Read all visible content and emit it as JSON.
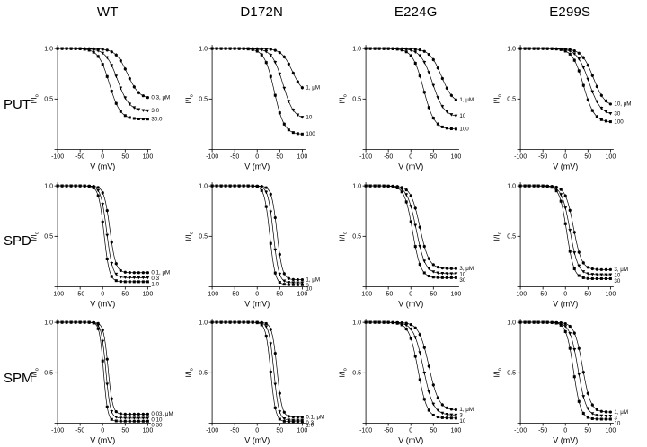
{
  "figure": {
    "columns": [
      "WT",
      "D172N",
      "E224G",
      "E299S"
    ],
    "rows": [
      "PUT",
      "SPD",
      "SPM"
    ],
    "axis": {
      "xlabel": "V (mV)",
      "ylabel_main": "I/I",
      "ylabel_sub": "o",
      "xticks": [
        -100,
        -50,
        0,
        50,
        100
      ],
      "yticks": [
        1.0,
        0.5
      ],
      "xlim": [
        -100,
        100
      ],
      "ylim": [
        0,
        1.05
      ]
    }
  },
  "chart_data": [
    {
      "row": "PUT",
      "col": "WT",
      "type": "line",
      "model": "boltzmann",
      "marker_step_mV": 10,
      "ylabel": "I/Io",
      "xlabel": "V (mV)",
      "series": [
        {
          "label": "0.3, μM",
          "conc_uM": 0.3,
          "marker": "circle",
          "vhalf": 55,
          "slope": 13,
          "floor": 0.5
        },
        {
          "label": "3.0",
          "conc_uM": 3,
          "marker": "triangle",
          "vhalf": 33,
          "slope": 13,
          "floor": 0.38
        },
        {
          "label": "30.0",
          "conc_uM": 30,
          "marker": "square",
          "vhalf": 15,
          "slope": 12,
          "floor": 0.3
        }
      ]
    },
    {
      "row": "PUT",
      "col": "D172N",
      "type": "line",
      "model": "boltzmann",
      "marker_step_mV": 10,
      "ylabel": "I/Io",
      "xlabel": "V (mV)",
      "series": [
        {
          "label": "1, μM",
          "conc_uM": 1,
          "marker": "circle",
          "vhalf": 78,
          "slope": 12,
          "floor": 0.55
        },
        {
          "label": "10",
          "conc_uM": 10,
          "marker": "triangle",
          "vhalf": 57,
          "slope": 12,
          "floor": 0.3
        },
        {
          "label": "100",
          "conc_uM": 100,
          "marker": "square",
          "vhalf": 38,
          "slope": 11,
          "floor": 0.15
        }
      ]
    },
    {
      "row": "PUT",
      "col": "E224G",
      "type": "line",
      "model": "boltzmann",
      "marker_step_mV": 10,
      "ylabel": "I/Io",
      "xlabel": "V (mV)",
      "series": [
        {
          "label": "1, μM",
          "conc_uM": 1,
          "marker": "circle",
          "vhalf": 68,
          "slope": 13,
          "floor": 0.45
        },
        {
          "label": "10",
          "conc_uM": 10,
          "marker": "triangle",
          "vhalf": 48,
          "slope": 13,
          "floor": 0.32
        },
        {
          "label": "100",
          "conc_uM": 100,
          "marker": "square",
          "vhalf": 28,
          "slope": 12,
          "floor": 0.2
        }
      ]
    },
    {
      "row": "PUT",
      "col": "E299S",
      "type": "line",
      "model": "boltzmann",
      "marker_step_mV": 10,
      "ylabel": "I/Io",
      "xlabel": "V (mV)",
      "series": [
        {
          "label": "10, μM",
          "conc_uM": 10,
          "marker": "circle",
          "vhalf": 62,
          "slope": 13,
          "floor": 0.42
        },
        {
          "label": "30",
          "conc_uM": 30,
          "marker": "triangle",
          "vhalf": 52,
          "slope": 13,
          "floor": 0.34
        },
        {
          "label": "100",
          "conc_uM": 100,
          "marker": "square",
          "vhalf": 40,
          "slope": 12,
          "floor": 0.27
        }
      ]
    },
    {
      "row": "SPD",
      "col": "WT",
      "type": "line",
      "model": "boltzmann",
      "marker_step_mV": 10,
      "ylabel": "I/Io",
      "xlabel": "V (mV)",
      "series": [
        {
          "label": "0.1, μM",
          "conc_uM": 0.1,
          "marker": "circle",
          "vhalf": 16,
          "slope": 6.5,
          "floor": 0.14
        },
        {
          "label": "0.3",
          "conc_uM": 0.3,
          "marker": "triangle",
          "vhalf": 9,
          "slope": 6.5,
          "floor": 0.09
        },
        {
          "label": "1.0",
          "conc_uM": 1,
          "marker": "square",
          "vhalf": 3,
          "slope": 6,
          "floor": 0.05
        }
      ]
    },
    {
      "row": "SPD",
      "col": "D172N",
      "type": "line",
      "model": "boltzmann",
      "marker_step_mV": 10,
      "ylabel": "I/Io",
      "xlabel": "V (mV)",
      "series": [
        {
          "label": "1, μM",
          "conc_uM": 1,
          "marker": "circle",
          "vhalf": 44,
          "slope": 6,
          "floor": 0.07
        },
        {
          "label": "3",
          "conc_uM": 3,
          "marker": "triangle",
          "vhalf": 36,
          "slope": 6,
          "floor": 0.04
        },
        {
          "label": "10",
          "conc_uM": 10,
          "marker": "square",
          "vhalf": 28,
          "slope": 6,
          "floor": 0.02
        }
      ]
    },
    {
      "row": "SPD",
      "col": "E224G",
      "type": "line",
      "model": "boltzmann",
      "marker_step_mV": 10,
      "ylabel": "I/Io",
      "xlabel": "V (mV)",
      "series": [
        {
          "label": "3, μM",
          "conc_uM": 3,
          "marker": "circle",
          "vhalf": 20,
          "slope": 10,
          "floor": 0.18
        },
        {
          "label": "10",
          "conc_uM": 10,
          "marker": "triangle",
          "vhalf": 12,
          "slope": 10,
          "floor": 0.13
        },
        {
          "label": "30",
          "conc_uM": 30,
          "marker": "square",
          "vhalf": 4,
          "slope": 9,
          "floor": 0.09
        }
      ]
    },
    {
      "row": "SPD",
      "col": "E299S",
      "type": "line",
      "model": "boltzmann",
      "marker_step_mV": 10,
      "ylabel": "I/Io",
      "xlabel": "V (mV)",
      "series": [
        {
          "label": "3, μM",
          "conc_uM": 3,
          "marker": "circle",
          "vhalf": 18,
          "slope": 9,
          "floor": 0.17
        },
        {
          "label": "10",
          "conc_uM": 10,
          "marker": "triangle",
          "vhalf": 10,
          "slope": 9,
          "floor": 0.12
        },
        {
          "label": "30",
          "conc_uM": 30,
          "marker": "square",
          "vhalf": 3,
          "slope": 8,
          "floor": 0.08
        }
      ]
    },
    {
      "row": "SPM",
      "col": "WT",
      "type": "line",
      "model": "boltzmann",
      "marker_step_mV": 10,
      "ylabel": "I/Io",
      "xlabel": "V (mV)",
      "series": [
        {
          "label": "0.03, μM",
          "conc_uM": 0.03,
          "marker": "circle",
          "vhalf": 12,
          "slope": 5,
          "floor": 0.09
        },
        {
          "label": "0.10",
          "conc_uM": 0.1,
          "marker": "triangle",
          "vhalf": 7,
          "slope": 5,
          "floor": 0.05
        },
        {
          "label": "0.30",
          "conc_uM": 0.3,
          "marker": "square",
          "vhalf": 2,
          "slope": 4.5,
          "floor": 0.02
        }
      ]
    },
    {
      "row": "SPM",
      "col": "D172N",
      "type": "line",
      "model": "boltzmann",
      "marker_step_mV": 10,
      "ylabel": "I/Io",
      "xlabel": "V (mV)",
      "series": [
        {
          "label": "0.1, μM",
          "conc_uM": 0.1,
          "marker": "circle",
          "vhalf": 44,
          "slope": 5.5,
          "floor": 0.06
        },
        {
          "label": "0.3",
          "conc_uM": 0.3,
          "marker": "triangle",
          "vhalf": 37,
          "slope": 5.5,
          "floor": 0.03
        },
        {
          "label": "1.0",
          "conc_uM": 1,
          "marker": "square",
          "vhalf": 30,
          "slope": 5.5,
          "floor": 0.015
        }
      ]
    },
    {
      "row": "SPM",
      "col": "E224G",
      "type": "line",
      "model": "boltzmann",
      "marker_step_mV": 10,
      "ylabel": "I/Io",
      "xlabel": "V (mV)",
      "series": [
        {
          "label": "1, μM",
          "conc_uM": 1,
          "marker": "circle",
          "vhalf": 40,
          "slope": 11,
          "floor": 0.13
        },
        {
          "label": "3",
          "conc_uM": 3,
          "marker": "triangle",
          "vhalf": 28,
          "slope": 11,
          "floor": 0.08
        },
        {
          "label": "10",
          "conc_uM": 10,
          "marker": "square",
          "vhalf": 16,
          "slope": 10,
          "floor": 0.05
        }
      ]
    },
    {
      "row": "SPM",
      "col": "E299S",
      "type": "line",
      "model": "boltzmann",
      "marker_step_mV": 10,
      "ylabel": "I/Io",
      "xlabel": "V (mV)",
      "series": [
        {
          "label": "1, μM",
          "conc_uM": 1,
          "marker": "circle",
          "vhalf": 38,
          "slope": 9,
          "floor": 0.11
        },
        {
          "label": "3",
          "conc_uM": 3,
          "marker": "triangle",
          "vhalf": 28,
          "slope": 9,
          "floor": 0.07
        },
        {
          "label": "10",
          "conc_uM": 10,
          "marker": "square",
          "vhalf": 18,
          "slope": 8,
          "floor": 0.04
        }
      ]
    }
  ]
}
